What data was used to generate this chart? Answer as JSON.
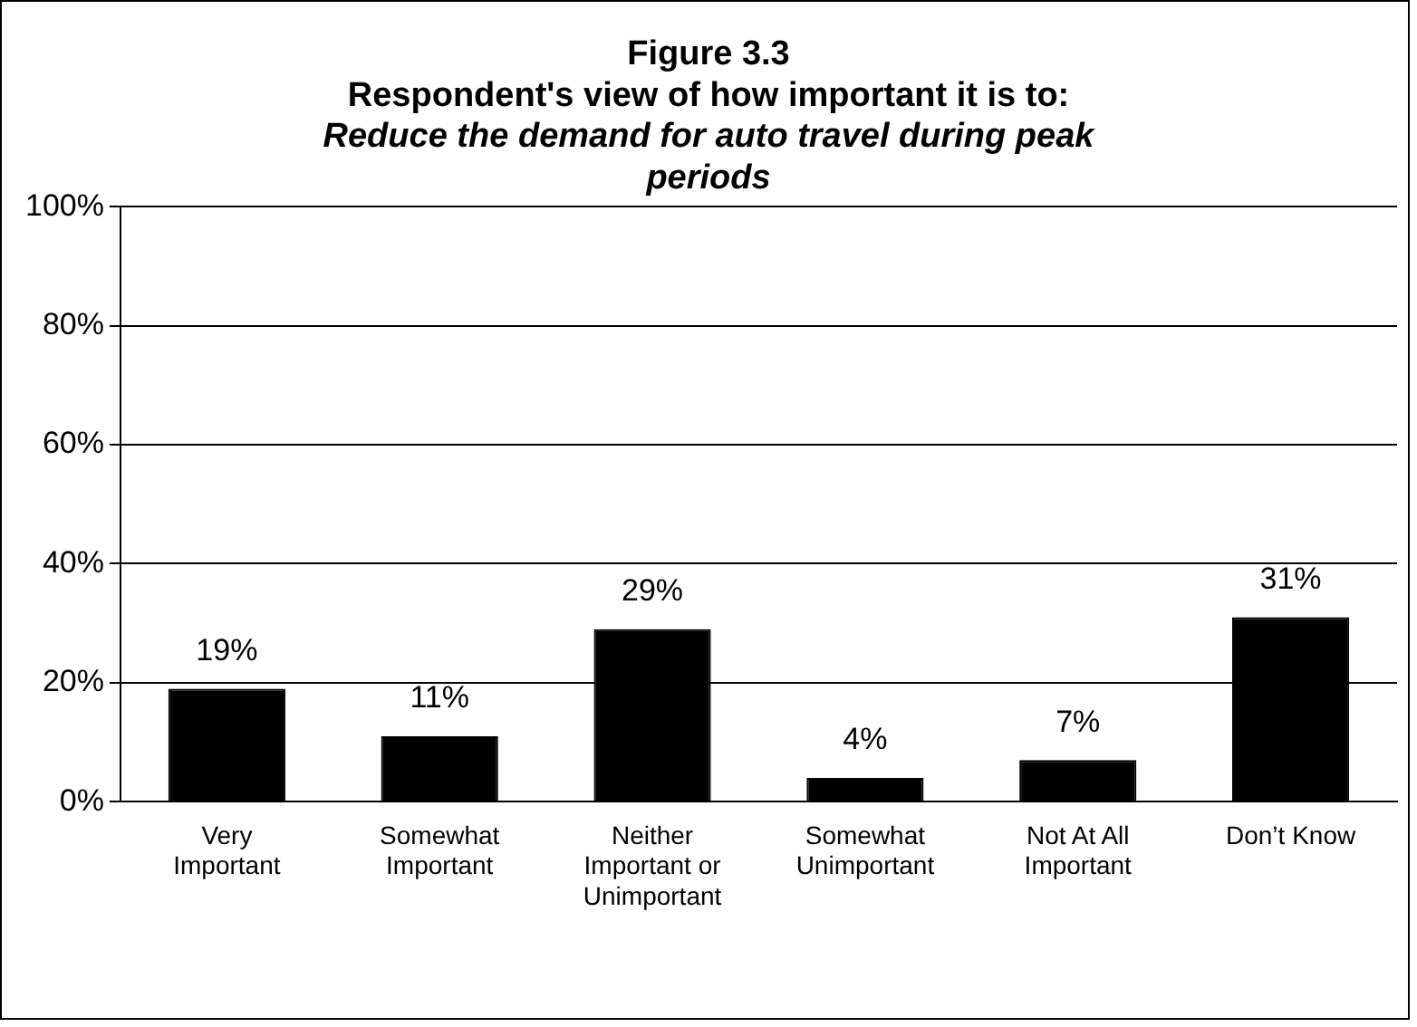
{
  "chart_data": {
    "type": "bar",
    "title": [
      "Figure 3.3",
      "Respondent's view of how important it is to:"
    ],
    "subtitle": "Reduce the demand for auto travel during peak periods",
    "categories": [
      "Very Important",
      "Somewhat Important",
      "Neither Important or Unimportant",
      "Somewhat Unimportant",
      "Not At All Important",
      "Don’t Know"
    ],
    "values": [
      19,
      11,
      29,
      4,
      7,
      31
    ],
    "value_labels": [
      "19%",
      "11%",
      "29%",
      "4%",
      "7%",
      "31%"
    ],
    "color": "#000000",
    "ylim": [
      0,
      100
    ],
    "yticks": [
      {
        "value": 0,
        "label": "0%"
      },
      {
        "value": 20,
        "label": "20%"
      },
      {
        "value": 40,
        "label": "40%"
      },
      {
        "value": 60,
        "label": "60%"
      },
      {
        "value": 80,
        "label": "80%"
      },
      {
        "value": 100,
        "label": "100%"
      }
    ],
    "grid": "y",
    "legend": false
  }
}
